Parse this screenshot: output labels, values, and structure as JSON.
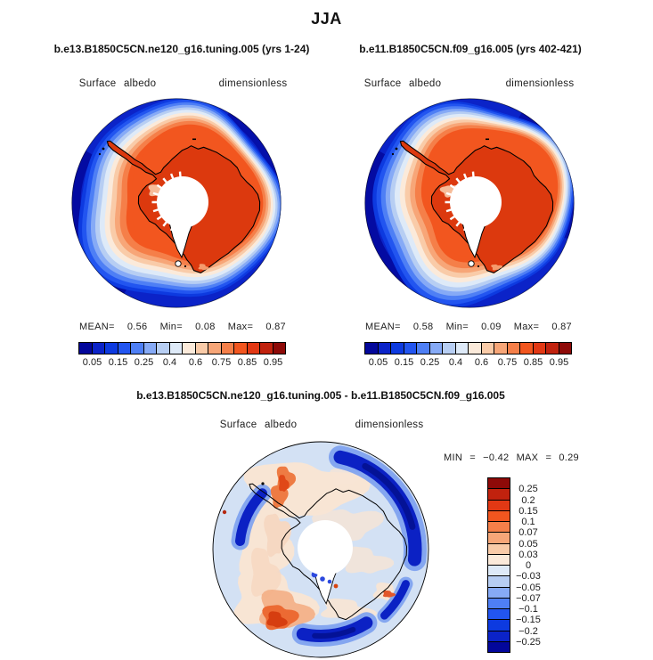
{
  "title": "JJA",
  "panels": {
    "left": {
      "subtitle": "b.e13.B1850C5CN.ne120_g16.tuning.005 (yrs 1-24)",
      "var_label": "Surface albedo",
      "units_label": "dimensionless",
      "stats": {
        "mean_label": "MEAN=",
        "mean": "0.56",
        "min_label": "Min=",
        "min": "0.08",
        "max_label": "Max=",
        "max": "0.87"
      },
      "ticks": [
        "0.05",
        "0.15",
        "0.25",
        "0.4",
        "0.6",
        "0.75",
        "0.85",
        "0.95"
      ]
    },
    "right": {
      "subtitle": "b.e11.B1850C5CN.f09_g16.005 (yrs 402-421)",
      "var_label": "Surface albedo",
      "units_label": "dimensionless",
      "stats": {
        "mean_label": "MEAN=",
        "mean": "0.58",
        "min_label": "Min=",
        "min": "0.09",
        "max_label": "Max=",
        "max": "0.87"
      },
      "ticks": [
        "0.05",
        "0.15",
        "0.25",
        "0.4",
        "0.6",
        "0.75",
        "0.85",
        "0.95"
      ]
    },
    "diff": {
      "subtitle": "b.e13.B1850C5CN.ne120_g16.tuning.005 - b.e11.B1850C5CN.f09_g16.005",
      "var_label": "Surface albedo",
      "units_label": "dimensionless",
      "stats": {
        "min_label": "MIN",
        "eq1": "=",
        "min": "−0.42",
        "max_label": "MAX",
        "eq2": "=",
        "max": "0.29"
      },
      "ticks": [
        "0.25",
        "0.2",
        "0.15",
        "0.1",
        "0.07",
        "0.05",
        "0.03",
        "0",
        "−0.03",
        "−0.05",
        "−0.07",
        "−0.1",
        "−0.15",
        "−0.2",
        "−0.25"
      ]
    }
  },
  "chart_data": {
    "type": "heatmap",
    "title": "JJA",
    "variable": "Surface albedo",
    "units": "dimensionless",
    "projection": "south polar stereographic (Antarctica)",
    "panels": [
      {
        "name": "b.e13.B1850C5CN.ne120_g16.tuning.005 (yrs 1-24)",
        "mean": 0.56,
        "min": 0.08,
        "max": 0.87
      },
      {
        "name": "b.e11.B1850C5CN.f09_g16.005 (yrs 402-421)",
        "mean": 0.58,
        "min": 0.09,
        "max": 0.87
      },
      {
        "name": "difference (ne120 tuning.005 minus f09 .005)",
        "min": -0.42,
        "max": 0.29
      }
    ],
    "albedo_levels": [
      0.05,
      0.1,
      0.15,
      0.2,
      0.25,
      0.3,
      0.4,
      0.5,
      0.6,
      0.7,
      0.75,
      0.8,
      0.85,
      0.9,
      0.95
    ],
    "albedo_labeled_levels": [
      0.05,
      0.15,
      0.25,
      0.4,
      0.6,
      0.75,
      0.85,
      0.95
    ],
    "diff_levels": [
      0.25,
      0.2,
      0.15,
      0.1,
      0.07,
      0.05,
      0.03,
      0,
      -0.03,
      -0.05,
      -0.07,
      -0.1,
      -0.15,
      -0.2,
      -0.25
    ],
    "palette": [
      "#03079B",
      "#0B23C8",
      "#0D3AE0",
      "#2255F0",
      "#4E7FF5",
      "#86AAF6",
      "#B7CEF3",
      "#DEEAF8",
      "#FBEADA",
      "#F9CBA8",
      "#F7A678",
      "#F57F49",
      "#F2561F",
      "#E23814",
      "#C1220E",
      "#8E0A08"
    ],
    "map_colors": {
      "ocean": "#0B23C8",
      "sea_ice": "#F2561F",
      "continent": "#DC390E",
      "pole_hole": "#FFFFFF",
      "coastline": "#000000",
      "diff_background": "#D3E1F4",
      "diff_positive_core": "#D63E10",
      "diff_negative_core": "#0B21C4"
    },
    "legend_position": {
      "albedo_bars": "below maps",
      "diff_bar": "right of map, vertical"
    }
  }
}
